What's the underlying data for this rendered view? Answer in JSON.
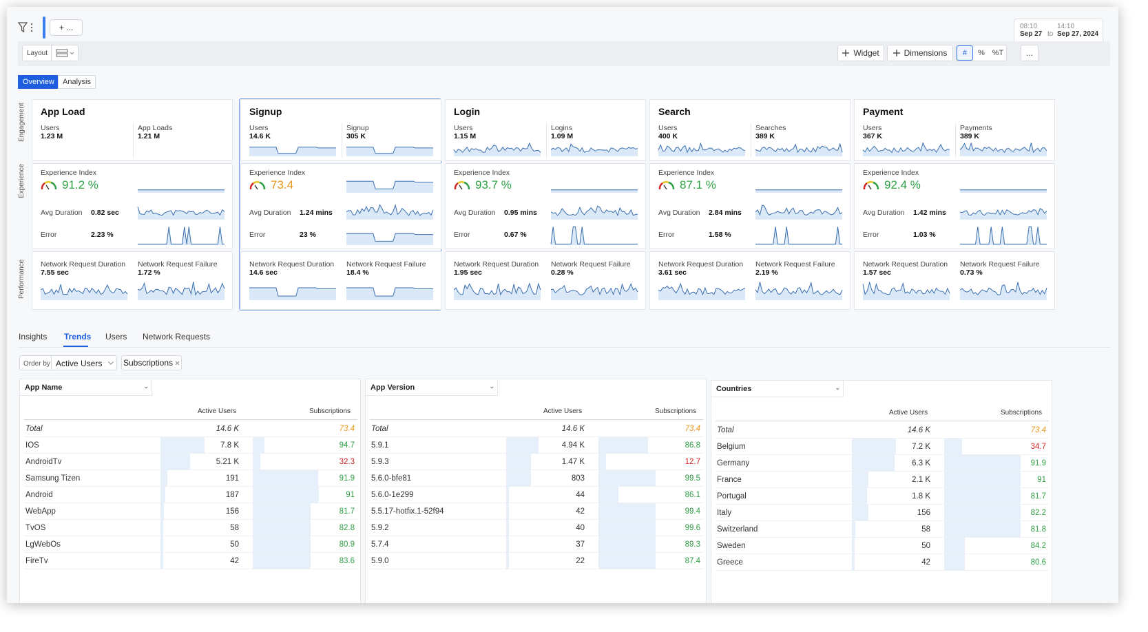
{
  "topbar": {
    "add_label": "+ ...",
    "date_from_time": "08:10",
    "date_from": "Sep 27",
    "date_to_label": "to",
    "date_to_time": "14:10",
    "date_to": "Sep 27, 2024"
  },
  "toolbar": {
    "layout_label": "Layout",
    "widget_label": "Widget",
    "dimensions_label": "Dimensions",
    "seg": [
      "#",
      "%",
      "%T"
    ],
    "more_label": "..."
  },
  "view_tabs": [
    "Overview",
    "Analysis"
  ],
  "row_labels": [
    "Engagement",
    "Experience",
    "Performance"
  ],
  "cards": [
    {
      "title": "App Load",
      "m1_label": "Users",
      "m1": "1.23 M",
      "m2_label": "App Loads",
      "m2": "1.21 M",
      "ei_label": "Experience Index",
      "ei": "91.2 %",
      "ei_color": "#2e9f46",
      "dur_label": "Avg Duration",
      "dur": "0.82 sec",
      "err_label": "Error",
      "err": "2.23 %",
      "nrd_label": "Network Request Duration",
      "nrd": "7.55 sec",
      "nrf_label": "Network Request Failure",
      "nrf": "1.72 %"
    },
    {
      "title": "Signup",
      "m1_label": "Users",
      "m1": "14.6 K",
      "m2_label": "Signup",
      "m2": "305 K",
      "ei_label": "Experience Index",
      "ei": "73.4",
      "ei_color": "#e8961a",
      "dur_label": "Avg Duration",
      "dur": "1.24 mins",
      "err_label": "Error",
      "err": "23 %",
      "nrd_label": "Network Request Duration",
      "nrd": "14.6 sec",
      "nrf_label": "Network Request Failure",
      "nrf": "18.4 %"
    },
    {
      "title": "Login",
      "m1_label": "Users",
      "m1": "1.15 M",
      "m2_label": "Logins",
      "m2": "1.09 M",
      "ei_label": "Experience Index",
      "ei": "93.7 %",
      "ei_color": "#2e9f46",
      "dur_label": "Avg Duration",
      "dur": "0.95 mins",
      "err_label": "Error",
      "err": "0.67 %",
      "nrd_label": "Network Request Duration",
      "nrd": "1.95 sec",
      "nrf_label": "Network Request Failure",
      "nrf": "0.28 %"
    },
    {
      "title": "Search",
      "m1_label": "Users",
      "m1": "400 K",
      "m2_label": "Searches",
      "m2": "389 K",
      "ei_label": "Experience Index",
      "ei": "87.1 %",
      "ei_color": "#2e9f46",
      "dur_label": "Avg Duration",
      "dur": "2.84 mins",
      "err_label": "Error",
      "err": "1.58 %",
      "nrd_label": "Network Request Duration",
      "nrd": "3.61 sec",
      "nrf_label": "Network Request Failure",
      "nrf": "2.19 %"
    },
    {
      "title": "Payment",
      "m1_label": "Users",
      "m1": "367 K",
      "m2_label": "Payments",
      "m2": "389 K",
      "ei_label": "Experience Index",
      "ei": "92.4 %",
      "ei_color": "#2e9f46",
      "dur_label": "Avg Duration",
      "dur": "1.42 mins",
      "err_label": "Error",
      "err": "1.03 %",
      "nrd_label": "Network Request Duration",
      "nrd": "1.57 sec",
      "nrf_label": "Network Request Failure",
      "nrf": "0.73 %"
    }
  ],
  "bottom_tabs": [
    "Insights",
    "Trends",
    "Users",
    "Network Requests"
  ],
  "order_by": {
    "label": "Order by",
    "value": "Active Users",
    "chip": "Subscriptions"
  },
  "tables": [
    {
      "dimension": "App Name",
      "col1": "Active Users",
      "col2": "Subscriptions",
      "rows": [
        {
          "name": "Total",
          "au": "14.6 K",
          "sub": "73.4",
          "au_frac": 0,
          "sub_frac": 0,
          "c": "co"
        },
        {
          "name": "IOS",
          "au": "7.8 K",
          "sub": "94.7",
          "au_frac": 0.53,
          "sub_frac": 0.11,
          "c": "cg"
        },
        {
          "name": "AndroidTv",
          "au": "5.21 K",
          "sub": "32.3",
          "au_frac": 0.36,
          "sub_frac": 0.07,
          "c": "cr"
        },
        {
          "name": "Samsung Tizen",
          "au": "191",
          "sub": "91.9",
          "au_frac": 0.08,
          "sub_frac": 0.63,
          "c": "cg"
        },
        {
          "name": "Android",
          "au": "187",
          "sub": "91",
          "au_frac": 0.06,
          "sub_frac": 0.64,
          "c": "cg"
        },
        {
          "name": "WebApp",
          "au": "156",
          "sub": "81.7",
          "au_frac": 0.04,
          "sub_frac": 0.56,
          "c": "cg"
        },
        {
          "name": "TvOS",
          "au": "58",
          "sub": "82.8",
          "au_frac": 0.03,
          "sub_frac": 0.56,
          "c": "cg"
        },
        {
          "name": "LgWebOs",
          "au": "50",
          "sub": "80.9",
          "au_frac": 0.02,
          "sub_frac": 0.56,
          "c": "cg"
        },
        {
          "name": "FireTv",
          "au": "42",
          "sub": "83.6",
          "au_frac": 0.02,
          "sub_frac": 0.56,
          "c": "cg"
        }
      ]
    },
    {
      "dimension": "App Version",
      "col1": "Active Users",
      "col2": "Subscriptions",
      "rows": [
        {
          "name": "Total",
          "au": "14.6 K",
          "sub": "73.4",
          "au_frac": 0,
          "sub_frac": 0,
          "c": "co"
        },
        {
          "name": "5.9.1",
          "au": "4.94 K",
          "sub": "86.8",
          "au_frac": 0.39,
          "sub_frac": 0.48,
          "c": "cg"
        },
        {
          "name": "5.9.3",
          "au": "1.47 K",
          "sub": "12.7",
          "au_frac": 0.3,
          "sub_frac": 0.07,
          "c": "cr"
        },
        {
          "name": "5.6.0-bfe81",
          "au": "803",
          "sub": "99.5",
          "au_frac": 0.3,
          "sub_frac": 0.55,
          "c": "cg"
        },
        {
          "name": "5.6.0-1e299",
          "au": "44",
          "sub": "86.1",
          "au_frac": 0.02,
          "sub_frac": 0.19,
          "c": "cg"
        },
        {
          "name": "5.5.17-hotfix.1-52f94",
          "au": "42",
          "sub": "99.4",
          "au_frac": 0.02,
          "sub_frac": 0.55,
          "c": "cg"
        },
        {
          "name": "5.9.2",
          "au": "40",
          "sub": "99.6",
          "au_frac": 0.02,
          "sub_frac": 0.55,
          "c": "cg"
        },
        {
          "name": "5.7.4",
          "au": "37",
          "sub": "89.3",
          "au_frac": 0.02,
          "sub_frac": 0.55,
          "c": "cg"
        },
        {
          "name": "5.9.0",
          "au": "22",
          "sub": "87.4",
          "au_frac": 0.01,
          "sub_frac": 0.55,
          "c": "cg"
        }
      ]
    },
    {
      "dimension": "Countries",
      "col1": "Active Users",
      "col2": "Subscriptions",
      "rows": [
        {
          "name": "Total",
          "au": "14.6 K",
          "sub": "73.4",
          "au_frac": 0,
          "sub_frac": 0,
          "c": "co"
        },
        {
          "name": "Belgium",
          "au": "7.2 K",
          "sub": "34.7",
          "au_frac": 0.53,
          "sub_frac": 0.17,
          "c": "cr"
        },
        {
          "name": "Germany",
          "au": "6.3 K",
          "sub": "91.9",
          "au_frac": 0.52,
          "sub_frac": 0.74,
          "c": "cg"
        },
        {
          "name": "France",
          "au": "2.1 K",
          "sub": "91",
          "au_frac": 0.2,
          "sub_frac": 0.74,
          "c": "cg"
        },
        {
          "name": "Portugal",
          "au": "1.8 K",
          "sub": "81.7",
          "au_frac": 0.18,
          "sub_frac": 0.74,
          "c": "cg"
        },
        {
          "name": "Italy",
          "au": "156",
          "sub": "82.2",
          "au_frac": 0.2,
          "sub_frac": 0.74,
          "c": "cg"
        },
        {
          "name": "Switzerland",
          "au": "58",
          "sub": "81.8",
          "au_frac": 0.04,
          "sub_frac": 0.74,
          "c": "cg"
        },
        {
          "name": "Sweden",
          "au": "50",
          "sub": "84.2",
          "au_frac": 0.03,
          "sub_frac": 0.2,
          "c": "cg"
        },
        {
          "name": "Greece",
          "au": "42",
          "sub": "80.6",
          "au_frac": 0.03,
          "sub_frac": 0.2,
          "c": "cg"
        }
      ]
    }
  ],
  "icons": {
    "filter": "filter-icon",
    "layout": "layout-rows-icon",
    "plus": "plus-icon",
    "chevron": "chevron-down-icon",
    "close": "close-icon",
    "gauge": "gauge-icon"
  },
  "colors": {
    "accent": "#1e5fe0",
    "spark_stroke": "#3a6fb0",
    "spark_fill": "#dbe8f7",
    "good": "#2e9f46",
    "bad": "#d32424",
    "warn": "#e8961a"
  }
}
